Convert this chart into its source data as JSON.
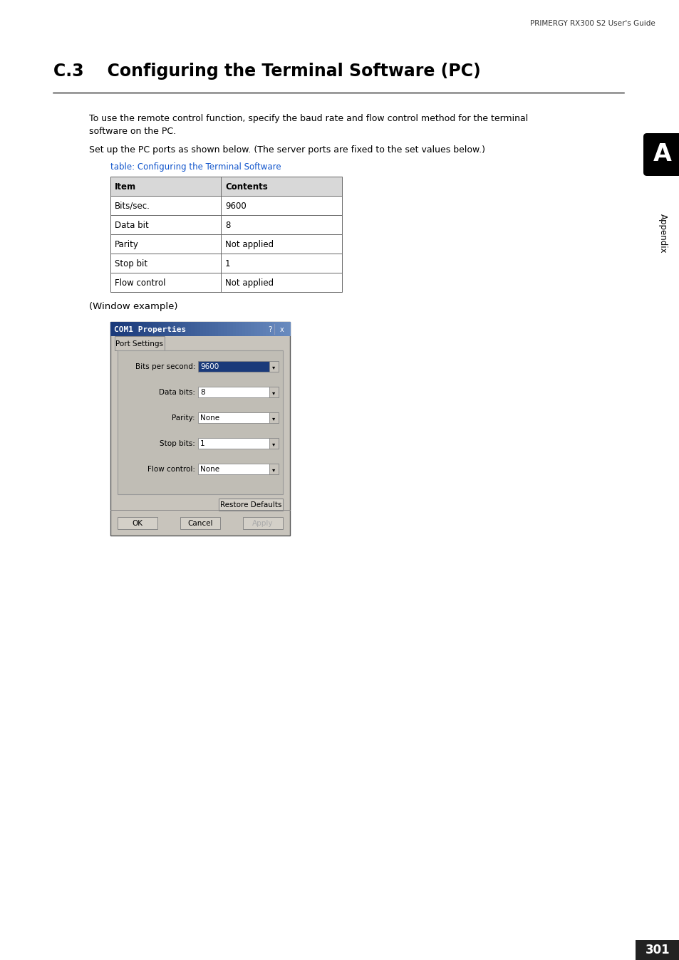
{
  "header_text": "PRIMERGY RX300 S2 User's Guide",
  "section_title": "C.3    Configuring the Terminal Software (PC)",
  "section_line_color": "#888888",
  "body_text_1a": "To use the remote control function, specify the baud rate and flow control method for the terminal",
  "body_text_1b": "software on the PC.",
  "body_text_2": "Set up the PC ports as shown below. (The server ports are fixed to the set values below.)",
  "table_caption": "table: Configuring the Terminal Software",
  "table_caption_color": "#1155CC",
  "table_headers": [
    "Item",
    "Contents"
  ],
  "table_rows": [
    [
      "Bits/sec.",
      "9600"
    ],
    [
      "Data bit",
      "8"
    ],
    [
      "Parity",
      "Not applied"
    ],
    [
      "Stop bit",
      "1"
    ],
    [
      "Flow control",
      "Not applied"
    ]
  ],
  "window_example_text": "(Window example)",
  "dialog_title": "COM1 Properties",
  "dialog_title_color_left": "#1a3a7a",
  "dialog_title_color_right": "#6a8cc0",
  "dialog_title_text_color": "#ffffff",
  "dialog_bg": "#c8c4bc",
  "tab_text": "Port Settings",
  "inner_panel_bg": "#c0bdb5",
  "fields": [
    {
      "label": "Bits per second:",
      "value": "9600",
      "highlighted": true
    },
    {
      "label": "Data bits:",
      "value": "8",
      "highlighted": false
    },
    {
      "label": "Parity:",
      "value": "None",
      "highlighted": false
    },
    {
      "label": "Stop bits:",
      "value": "1",
      "highlighted": false
    },
    {
      "label": "Flow control:",
      "value": "None",
      "highlighted": false
    }
  ],
  "button_restore": "Restore Defaults",
  "buttons_bottom": [
    "OK",
    "Cancel",
    "Apply"
  ],
  "appendix_letter": "A",
  "appendix_text": "Appendix",
  "page_number": "301",
  "page_bg": "#ffffff"
}
